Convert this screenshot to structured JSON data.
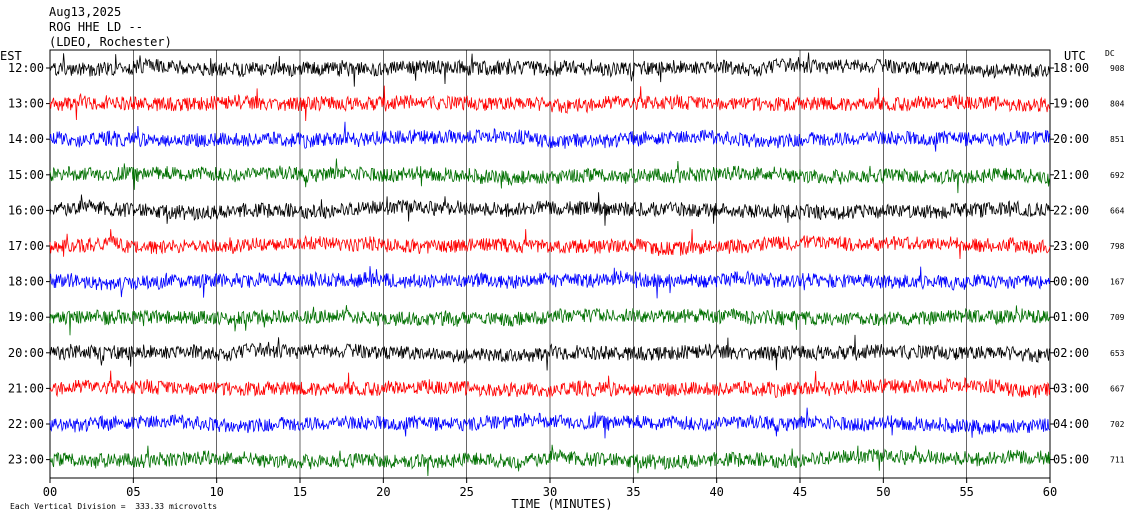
{
  "header": {
    "date": "Aug13,2025",
    "station": "ROG HHE LD --",
    "location": "(LDEO, Rochester)"
  },
  "left_timezone": "EST",
  "right_timezone": "UTC",
  "dc_label": "DC",
  "footer": {
    "scale_note": "Each Vertical Division =  333.33 microvolts"
  },
  "chart_data": {
    "type": "line",
    "title": "",
    "xlabel": "TIME (MINUTES)",
    "ylabel": "",
    "xlim": [
      0,
      60
    ],
    "x_ticks": [
      "00",
      "05",
      "10",
      "15",
      "20",
      "25",
      "30",
      "35",
      "40",
      "45",
      "50",
      "55",
      "60"
    ],
    "grid": "vertical-lines",
    "trace_colors": [
      "#000000",
      "#ff0000",
      "#0000ff",
      "#007000"
    ],
    "rows": [
      {
        "est": "12:00",
        "utc": "18:00",
        "dc": "908"
      },
      {
        "est": "13:00",
        "utc": "19:00",
        "dc": "804"
      },
      {
        "est": "14:00",
        "utc": "20:00",
        "dc": "851"
      },
      {
        "est": "15:00",
        "utc": "21:00",
        "dc": "692"
      },
      {
        "est": "16:00",
        "utc": "22:00",
        "dc": "664"
      },
      {
        "est": "17:00",
        "utc": "23:00",
        "dc": "798"
      },
      {
        "est": "18:00",
        "utc": "00:00",
        "dc": "167"
      },
      {
        "est": "19:00",
        "utc": "01:00",
        "dc": "709"
      },
      {
        "est": "20:00",
        "utc": "02:00",
        "dc": "653"
      },
      {
        "est": "21:00",
        "utc": "03:00",
        "dc": "667"
      },
      {
        "est": "22:00",
        "utc": "04:00",
        "dc": "702"
      },
      {
        "est": "23:00",
        "utc": "05:00",
        "dc": "711"
      }
    ]
  }
}
